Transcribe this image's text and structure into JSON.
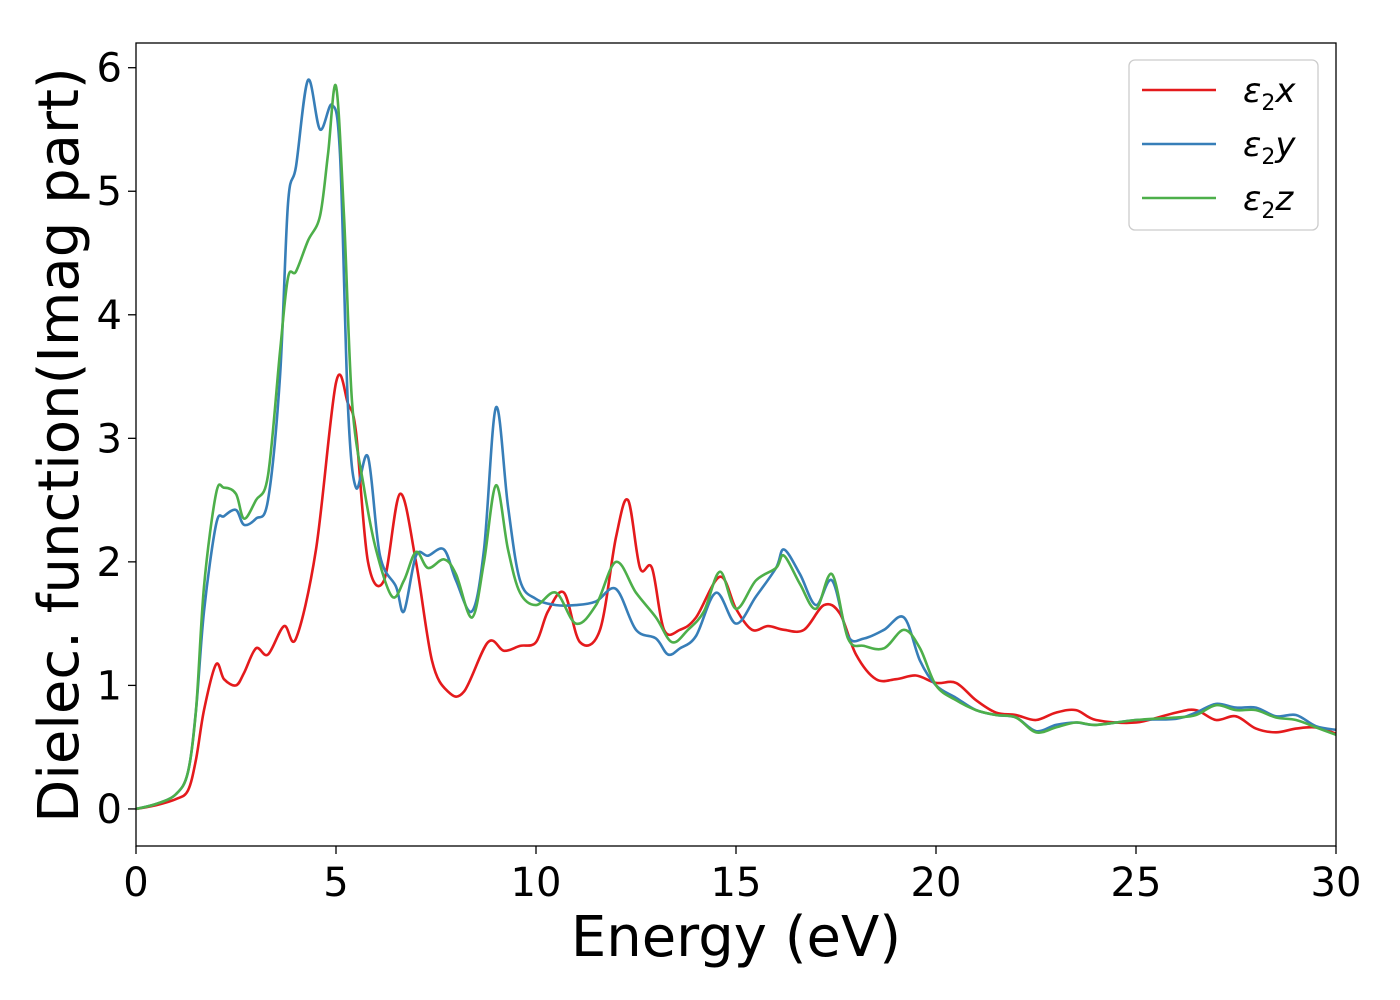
{
  "chart_data": {
    "type": "line",
    "xlabel": "Energy (eV)",
    "ylabel": "Dielec. function(Imag part)",
    "xlim": [
      0,
      30
    ],
    "ylim": [
      -0.3,
      6.2
    ],
    "xticks": [
      0,
      5,
      10,
      15,
      20,
      25,
      30
    ],
    "xtick_labels": [
      "0",
      "5",
      "10",
      "15",
      "20",
      "25",
      "30"
    ],
    "yticks": [
      0,
      1,
      2,
      3,
      4,
      5,
      6
    ],
    "ytick_labels": [
      "0",
      "1",
      "2",
      "3",
      "4",
      "5",
      "6"
    ],
    "grid": false,
    "legend_position": "top-right",
    "series": [
      {
        "name": "ε2x",
        "legend_base": "ε",
        "legend_sub": "2",
        "legend_suffix": "x",
        "color": "#e41a1c",
        "x": [
          0,
          0.5,
          1.0,
          1.3,
          1.5,
          1.7,
          2.0,
          2.2,
          2.5,
          2.7,
          3.0,
          3.3,
          3.7,
          4.0,
          4.5,
          5.0,
          5.3,
          5.5,
          5.8,
          6.2,
          6.6,
          7.0,
          7.4,
          7.8,
          8.2,
          8.8,
          9.2,
          9.6,
          10.0,
          10.3,
          10.7,
          11.1,
          11.6,
          12.0,
          12.3,
          12.6,
          12.9,
          13.2,
          13.6,
          14.0,
          14.6,
          15.0,
          15.4,
          15.8,
          16.2,
          16.7,
          17.2,
          17.6,
          18.0,
          18.5,
          19.0,
          19.5,
          20.0,
          20.5,
          21.0,
          21.5,
          22.0,
          22.5,
          23.0,
          23.5,
          24.0,
          25.0,
          26.0,
          26.5,
          27.0,
          27.5,
          28.0,
          28.5,
          29.0,
          29.5,
          30.0
        ],
        "values": [
          0.0,
          0.03,
          0.08,
          0.15,
          0.4,
          0.8,
          1.17,
          1.05,
          1.0,
          1.1,
          1.3,
          1.25,
          1.48,
          1.38,
          2.1,
          3.45,
          3.28,
          3.05,
          2.0,
          1.85,
          2.55,
          2.0,
          1.2,
          0.95,
          0.95,
          1.35,
          1.28,
          1.32,
          1.35,
          1.6,
          1.75,
          1.35,
          1.45,
          2.2,
          2.5,
          1.95,
          1.95,
          1.45,
          1.45,
          1.55,
          1.88,
          1.62,
          1.45,
          1.48,
          1.45,
          1.45,
          1.65,
          1.58,
          1.25,
          1.05,
          1.05,
          1.08,
          1.02,
          1.02,
          0.88,
          0.78,
          0.76,
          0.72,
          0.78,
          0.8,
          0.72,
          0.7,
          0.78,
          0.8,
          0.72,
          0.75,
          0.65,
          0.62,
          0.65,
          0.66,
          0.61
        ]
      },
      {
        "name": "ε2y",
        "legend_base": "ε",
        "legend_sub": "2",
        "legend_suffix": "y",
        "color": "#377eb8",
        "x": [
          0,
          0.5,
          1.0,
          1.3,
          1.5,
          1.7,
          2.0,
          2.2,
          2.5,
          2.7,
          3.0,
          3.3,
          3.6,
          3.8,
          4.0,
          4.3,
          4.6,
          4.9,
          5.1,
          5.3,
          5.5,
          5.8,
          6.1,
          6.5,
          6.7,
          7.0,
          7.3,
          7.7,
          8.0,
          8.4,
          8.7,
          9.0,
          9.3,
          9.6,
          10.0,
          10.5,
          11.0,
          11.5,
          12.0,
          12.5,
          13.0,
          13.3,
          13.6,
          14.0,
          14.5,
          15.0,
          15.5,
          16.0,
          16.2,
          16.6,
          17.0,
          17.4,
          17.8,
          18.2,
          18.7,
          19.2,
          19.6,
          20.0,
          20.5,
          21.0,
          21.5,
          22.0,
          22.5,
          23.0,
          23.5,
          24.0,
          25.0,
          26.0,
          26.5,
          27.0,
          27.5,
          28.0,
          28.5,
          29.0,
          29.5,
          30.0
        ],
        "values": [
          0.0,
          0.04,
          0.12,
          0.3,
          0.8,
          1.6,
          2.3,
          2.37,
          2.42,
          2.3,
          2.35,
          2.5,
          3.5,
          4.9,
          5.2,
          5.9,
          5.5,
          5.7,
          5.3,
          3.25,
          2.6,
          2.85,
          2.05,
          1.8,
          1.6,
          2.05,
          2.05,
          2.1,
          1.85,
          1.6,
          2.1,
          3.25,
          2.45,
          1.85,
          1.7,
          1.65,
          1.65,
          1.68,
          1.78,
          1.45,
          1.38,
          1.25,
          1.3,
          1.4,
          1.75,
          1.5,
          1.72,
          1.95,
          2.1,
          1.9,
          1.65,
          1.85,
          1.4,
          1.38,
          1.45,
          1.55,
          1.2,
          1.0,
          0.9,
          0.8,
          0.76,
          0.74,
          0.63,
          0.68,
          0.7,
          0.68,
          0.72,
          0.73,
          0.78,
          0.85,
          0.82,
          0.82,
          0.75,
          0.76,
          0.67,
          0.64
        ]
      },
      {
        "name": "ε2z",
        "legend_base": "ε",
        "legend_sub": "2",
        "legend_suffix": "z",
        "color": "#4daf4a",
        "x": [
          0,
          0.5,
          1.0,
          1.3,
          1.5,
          1.7,
          2.0,
          2.2,
          2.5,
          2.7,
          3.0,
          3.3,
          3.6,
          3.8,
          4.0,
          4.3,
          4.6,
          4.8,
          5.0,
          5.2,
          5.4,
          5.7,
          6.0,
          6.4,
          6.7,
          7.0,
          7.3,
          7.7,
          8.0,
          8.4,
          8.7,
          9.0,
          9.3,
          9.6,
          10.0,
          10.5,
          11.0,
          11.5,
          12.0,
          12.5,
          13.0,
          13.4,
          13.8,
          14.2,
          14.6,
          15.0,
          15.5,
          16.0,
          16.2,
          16.6,
          17.0,
          17.4,
          17.8,
          18.2,
          18.7,
          19.2,
          19.6,
          20.0,
          20.5,
          21.0,
          21.5,
          22.0,
          22.5,
          23.0,
          23.5,
          24.0,
          25.0,
          26.0,
          26.5,
          27.0,
          27.5,
          28.0,
          28.5,
          29.0,
          29.5,
          30.0
        ],
        "values": [
          0.0,
          0.04,
          0.12,
          0.3,
          0.8,
          1.8,
          2.55,
          2.6,
          2.55,
          2.35,
          2.5,
          2.7,
          3.7,
          4.3,
          4.35,
          4.6,
          4.8,
          5.3,
          5.85,
          4.8,
          3.3,
          2.6,
          2.1,
          1.72,
          1.85,
          2.08,
          1.95,
          2.02,
          1.9,
          1.55,
          2.0,
          2.62,
          2.1,
          1.75,
          1.65,
          1.75,
          1.5,
          1.65,
          2.0,
          1.75,
          1.55,
          1.35,
          1.45,
          1.6,
          1.92,
          1.62,
          1.85,
          1.95,
          2.05,
          1.82,
          1.62,
          1.9,
          1.38,
          1.32,
          1.3,
          1.45,
          1.3,
          1.0,
          0.88,
          0.8,
          0.76,
          0.74,
          0.62,
          0.66,
          0.7,
          0.68,
          0.72,
          0.74,
          0.76,
          0.84,
          0.8,
          0.8,
          0.74,
          0.72,
          0.66,
          0.6
        ]
      }
    ]
  }
}
